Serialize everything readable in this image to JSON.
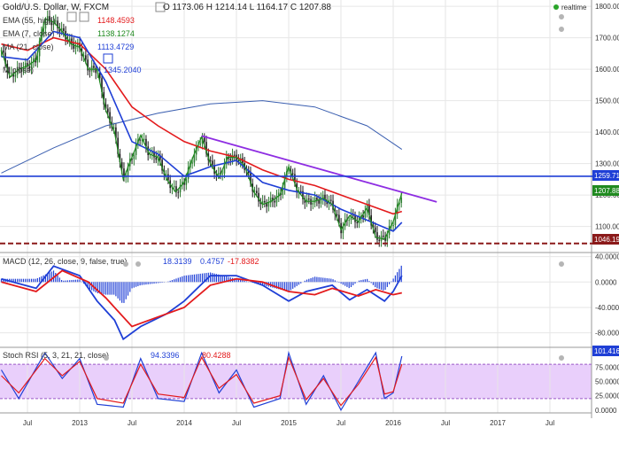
{
  "header": {
    "symbol": "Gold/U.S. Dollar, W, FXCM",
    "ohlc": "O 1173.06 H 1214.14 L 1164.17 C 1207.88",
    "realtime": "realtime"
  },
  "indicators": {
    "ema55": {
      "label": "EMA (55, high)",
      "value": "1148.4593",
      "color": "#e31a1c"
    },
    "ema7": {
      "label": "EMA (7, close)",
      "value": "1138.1274",
      "color": "#208a20"
    },
    "ma21": {
      "label": "MA (21, close)",
      "value": "1113.4729",
      "color": "#1f3fd6"
    },
    "ma_long": {
      "label": "M",
      "label2": "close)",
      "value": "1345.2040",
      "color": "#1f3fd6"
    }
  },
  "macd_panel": {
    "label": "MACD (12, 26, close, 9, false, true)",
    "values": [
      "18.3139",
      "0.4757",
      "-17.8382"
    ]
  },
  "rsi_panel": {
    "label": "Stoch RSI (5, 3, 21, 21, close)",
    "values": [
      "94.3396",
      "80.4288"
    ]
  },
  "badges": {
    "level_high": "1259.71",
    "last_price": "1207.88",
    "level_low": "1046.19",
    "rsi_level": "101.416"
  },
  "chart_data": [
    {
      "type": "candlestick",
      "title": "Gold/U.S. Dollar, W, FXCM",
      "x_ticks": [
        "Jul",
        "2013",
        "Jul",
        "2014",
        "Jul",
        "2015",
        "Jul",
        "2016",
        "Jul",
        "2017",
        "Jul"
      ],
      "y_ticks": [
        "1800.00",
        "1700.00",
        "1600.00",
        "1500.00",
        "1400.00",
        "1300.00",
        "1200.00",
        "1100.00"
      ],
      "ylim": [
        1020,
        1820
      ],
      "last_close": 1207.88,
      "horizontal_levels": [
        1259.71,
        1046.19
      ],
      "trendline": {
        "from": [
          "2014-03",
          1388
        ],
        "to": [
          "2016-06",
          1178
        ]
      },
      "close_path": [
        [
          "2012-04",
          1660
        ],
        [
          "2012-05",
          1575
        ],
        [
          "2012-06",
          1600
        ],
        [
          "2012-07",
          1610
        ],
        [
          "2012-08",
          1630
        ],
        [
          "2012-09",
          1760
        ],
        [
          "2012-10",
          1750
        ],
        [
          "2012-11",
          1720
        ],
        [
          "2012-12",
          1680
        ],
        [
          "2013-01",
          1670
        ],
        [
          "2013-02",
          1600
        ],
        [
          "2013-03",
          1600
        ],
        [
          "2013-04",
          1470
        ],
        [
          "2013-05",
          1400
        ],
        [
          "2013-06",
          1250
        ],
        [
          "2013-07",
          1320
        ],
        [
          "2013-08",
          1390
        ],
        [
          "2013-09",
          1330
        ],
        [
          "2013-10",
          1320
        ],
        [
          "2013-11",
          1250
        ],
        [
          "2013-12",
          1210
        ],
        [
          "2014-01",
          1240
        ],
        [
          "2014-02",
          1320
        ],
        [
          "2014-03",
          1385
        ],
        [
          "2014-04",
          1300
        ],
        [
          "2014-05",
          1255
        ],
        [
          "2014-06",
          1320
        ],
        [
          "2014-07",
          1320
        ],
        [
          "2014-08",
          1290
        ],
        [
          "2014-09",
          1210
        ],
        [
          "2014-10",
          1170
        ],
        [
          "2014-11",
          1180
        ],
        [
          "2014-12",
          1200
        ],
        [
          "2015-01",
          1290
        ],
        [
          "2015-02",
          1215
        ],
        [
          "2015-03",
          1180
        ],
        [
          "2015-04",
          1180
        ],
        [
          "2015-05",
          1190
        ],
        [
          "2015-06",
          1170
        ],
        [
          "2015-07",
          1090
        ],
        [
          "2015-08",
          1135
        ],
        [
          "2015-09",
          1115
        ],
        [
          "2015-10",
          1160
        ],
        [
          "2015-11",
          1065
        ],
        [
          "2015-12",
          1060
        ],
        [
          "2016-01",
          1115
        ],
        [
          "2016-02",
          1207
        ]
      ],
      "ema55": [
        [
          "2012-04",
          1680
        ],
        [
          "2012-07",
          1660
        ],
        [
          "2012-10",
          1700
        ],
        [
          "2013-01",
          1680
        ],
        [
          "2013-04",
          1600
        ],
        [
          "2013-07",
          1480
        ],
        [
          "2013-10",
          1420
        ],
        [
          "2014-01",
          1370
        ],
        [
          "2014-04",
          1340
        ],
        [
          "2014-07",
          1320
        ],
        [
          "2014-10",
          1280
        ],
        [
          "2015-01",
          1250
        ],
        [
          "2015-04",
          1230
        ],
        [
          "2015-07",
          1200
        ],
        [
          "2015-10",
          1170
        ],
        [
          "2016-01",
          1140
        ],
        [
          "2016-02",
          1148
        ]
      ],
      "ma21": [
        [
          "2012-04",
          1640
        ],
        [
          "2012-07",
          1630
        ],
        [
          "2012-10",
          1720
        ],
        [
          "2013-01",
          1700
        ],
        [
          "2013-04",
          1560
        ],
        [
          "2013-07",
          1370
        ],
        [
          "2013-10",
          1330
        ],
        [
          "2014-01",
          1260
        ],
        [
          "2014-04",
          1290
        ],
        [
          "2014-07",
          1310
        ],
        [
          "2014-10",
          1240
        ],
        [
          "2015-01",
          1215
        ],
        [
          "2015-04",
          1200
        ],
        [
          "2015-07",
          1155
        ],
        [
          "2015-10",
          1120
        ],
        [
          "2016-01",
          1085
        ],
        [
          "2016-02",
          1113
        ]
      ],
      "ma_long": [
        [
          "2012-04",
          1270
        ],
        [
          "2012-10",
          1350
        ],
        [
          "2013-04",
          1420
        ],
        [
          "2013-10",
          1460
        ],
        [
          "2014-04",
          1490
        ],
        [
          "2014-10",
          1500
        ],
        [
          "2015-04",
          1480
        ],
        [
          "2015-10",
          1420
        ],
        [
          "2016-02",
          1345
        ]
      ]
    },
    {
      "type": "line",
      "title": "MACD (12, 26, close, 9, false, true)",
      "y_ticks": [
        "40.0000",
        "0.0000",
        "-40.0000",
        "-80.0000"
      ],
      "ylim": [
        -100,
        45
      ],
      "series": [
        {
          "name": "MACD",
          "color": "#1f3fd6",
          "points": [
            [
              "2012-04",
              5
            ],
            [
              "2012-08",
              -10
            ],
            [
              "2012-10",
              25
            ],
            [
              "2013-01",
              10
            ],
            [
              "2013-03",
              -30
            ],
            [
              "2013-05",
              -60
            ],
            [
              "2013-06",
              -90
            ],
            [
              "2013-08",
              -70
            ],
            [
              "2013-11",
              -50
            ],
            [
              "2014-01",
              -30
            ],
            [
              "2014-04",
              10
            ],
            [
              "2014-07",
              10
            ],
            [
              "2014-10",
              -5
            ],
            [
              "2015-01",
              -30
            ],
            [
              "2015-03",
              -15
            ],
            [
              "2015-06",
              -5
            ],
            [
              "2015-08",
              -28
            ],
            [
              "2015-10",
              -12
            ],
            [
              "2015-12",
              -30
            ],
            [
              "2016-01",
              -15
            ],
            [
              "2016-02",
              10
            ]
          ]
        },
        {
          "name": "Signal",
          "color": "#e31a1c",
          "points": [
            [
              "2012-04",
              0
            ],
            [
              "2012-08",
              -15
            ],
            [
              "2012-11",
              18
            ],
            [
              "2013-02",
              0
            ],
            [
              "2013-04",
              -25
            ],
            [
              "2013-07",
              -70
            ],
            [
              "2013-10",
              -55
            ],
            [
              "2014-01",
              -40
            ],
            [
              "2014-04",
              -5
            ],
            [
              "2014-07",
              5
            ],
            [
              "2014-10",
              0
            ],
            [
              "2015-01",
              -15
            ],
            [
              "2015-04",
              -20
            ],
            [
              "2015-06",
              -10
            ],
            [
              "2015-09",
              -22
            ],
            [
              "2015-11",
              -12
            ],
            [
              "2016-01",
              -20
            ],
            [
              "2016-02",
              -17
            ]
          ]
        }
      ]
    },
    {
      "type": "line",
      "title": "Stoch RSI (5, 3, 21, 21, close)",
      "y_ticks": [
        "100.0000",
        "75.0000",
        "50.0000",
        "25.0000",
        "0.0000"
      ],
      "ylim": [
        -5,
        108
      ],
      "band": [
        20,
        80
      ],
      "series": [
        {
          "name": "K",
          "color": "#1f3fd6",
          "points": [
            [
              "2012-04",
              70
            ],
            [
              "2012-06",
              20
            ],
            [
              "2012-09",
              100
            ],
            [
              "2012-11",
              55
            ],
            [
              "2013-01",
              90
            ],
            [
              "2013-03",
              10
            ],
            [
              "2013-06",
              5
            ],
            [
              "2013-08",
              90
            ],
            [
              "2013-10",
              20
            ],
            [
              "2014-01",
              15
            ],
            [
              "2014-03",
              100
            ],
            [
              "2014-05",
              30
            ],
            [
              "2014-07",
              70
            ],
            [
              "2014-09",
              5
            ],
            [
              "2014-12",
              20
            ],
            [
              "2015-01",
              100
            ],
            [
              "2015-03",
              10
            ],
            [
              "2015-05",
              60
            ],
            [
              "2015-07",
              0
            ],
            [
              "2015-09",
              50
            ],
            [
              "2015-11",
              100
            ],
            [
              "2015-12",
              20
            ],
            [
              "2016-01",
              30
            ],
            [
              "2016-02",
              94
            ]
          ]
        },
        {
          "name": "D",
          "color": "#e31a1c",
          "points": [
            [
              "2012-04",
              60
            ],
            [
              "2012-06",
              30
            ],
            [
              "2012-09",
              90
            ],
            [
              "2012-11",
              60
            ],
            [
              "2013-01",
              85
            ],
            [
              "2013-03",
              20
            ],
            [
              "2013-06",
              12
            ],
            [
              "2013-08",
              80
            ],
            [
              "2013-10",
              28
            ],
            [
              "2014-01",
              22
            ],
            [
              "2014-03",
              92
            ],
            [
              "2014-05",
              38
            ],
            [
              "2014-07",
              62
            ],
            [
              "2014-09",
              12
            ],
            [
              "2014-12",
              25
            ],
            [
              "2015-01",
              92
            ],
            [
              "2015-03",
              18
            ],
            [
              "2015-05",
              55
            ],
            [
              "2015-07",
              8
            ],
            [
              "2015-09",
              45
            ],
            [
              "2015-11",
              92
            ],
            [
              "2015-12",
              28
            ],
            [
              "2016-01",
              32
            ],
            [
              "2016-02",
              80
            ]
          ]
        }
      ]
    }
  ]
}
